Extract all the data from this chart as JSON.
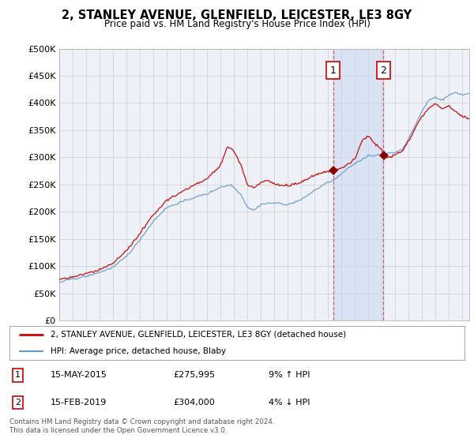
{
  "title": "2, STANLEY AVENUE, GLENFIELD, LEICESTER, LE3 8GY",
  "subtitle": "Price paid vs. HM Land Registry's House Price Index (HPI)",
  "ylim": [
    0,
    500000
  ],
  "yticks": [
    0,
    50000,
    100000,
    150000,
    200000,
    250000,
    300000,
    350000,
    400000,
    450000,
    500000
  ],
  "ytick_labels": [
    "£0",
    "£50K",
    "£100K",
    "£150K",
    "£200K",
    "£250K",
    "£300K",
    "£350K",
    "£400K",
    "£450K",
    "£500K"
  ],
  "xlim_start": 1995.0,
  "xlim_end": 2025.5,
  "background_color": "#ffffff",
  "plot_bg_color": "#eef2f8",
  "grid_color": "#cccccc",
  "red_line_color": "#cc0000",
  "blue_line_color": "#6699cc",
  "marker1_x": 2015.37,
  "marker1_y": 275995,
  "marker1_label": "1",
  "marker1_date": "15-MAY-2015",
  "marker1_price": "£275,995",
  "marker1_hpi": "9% ↑ HPI",
  "marker2_x": 2019.12,
  "marker2_y": 304000,
  "marker2_label": "2",
  "marker2_date": "15-FEB-2019",
  "marker2_price": "£304,000",
  "marker2_hpi": "4% ↓ HPI",
  "legend_line1": "2, STANLEY AVENUE, GLENFIELD, LEICESTER, LE3 8GY (detached house)",
  "legend_line2": "HPI: Average price, detached house, Blaby",
  "footer": "Contains HM Land Registry data © Crown copyright and database right 2024.\nThis data is licensed under the Open Government Licence v3.0.",
  "shade_x1": 2015.37,
  "shade_x2": 2019.12
}
